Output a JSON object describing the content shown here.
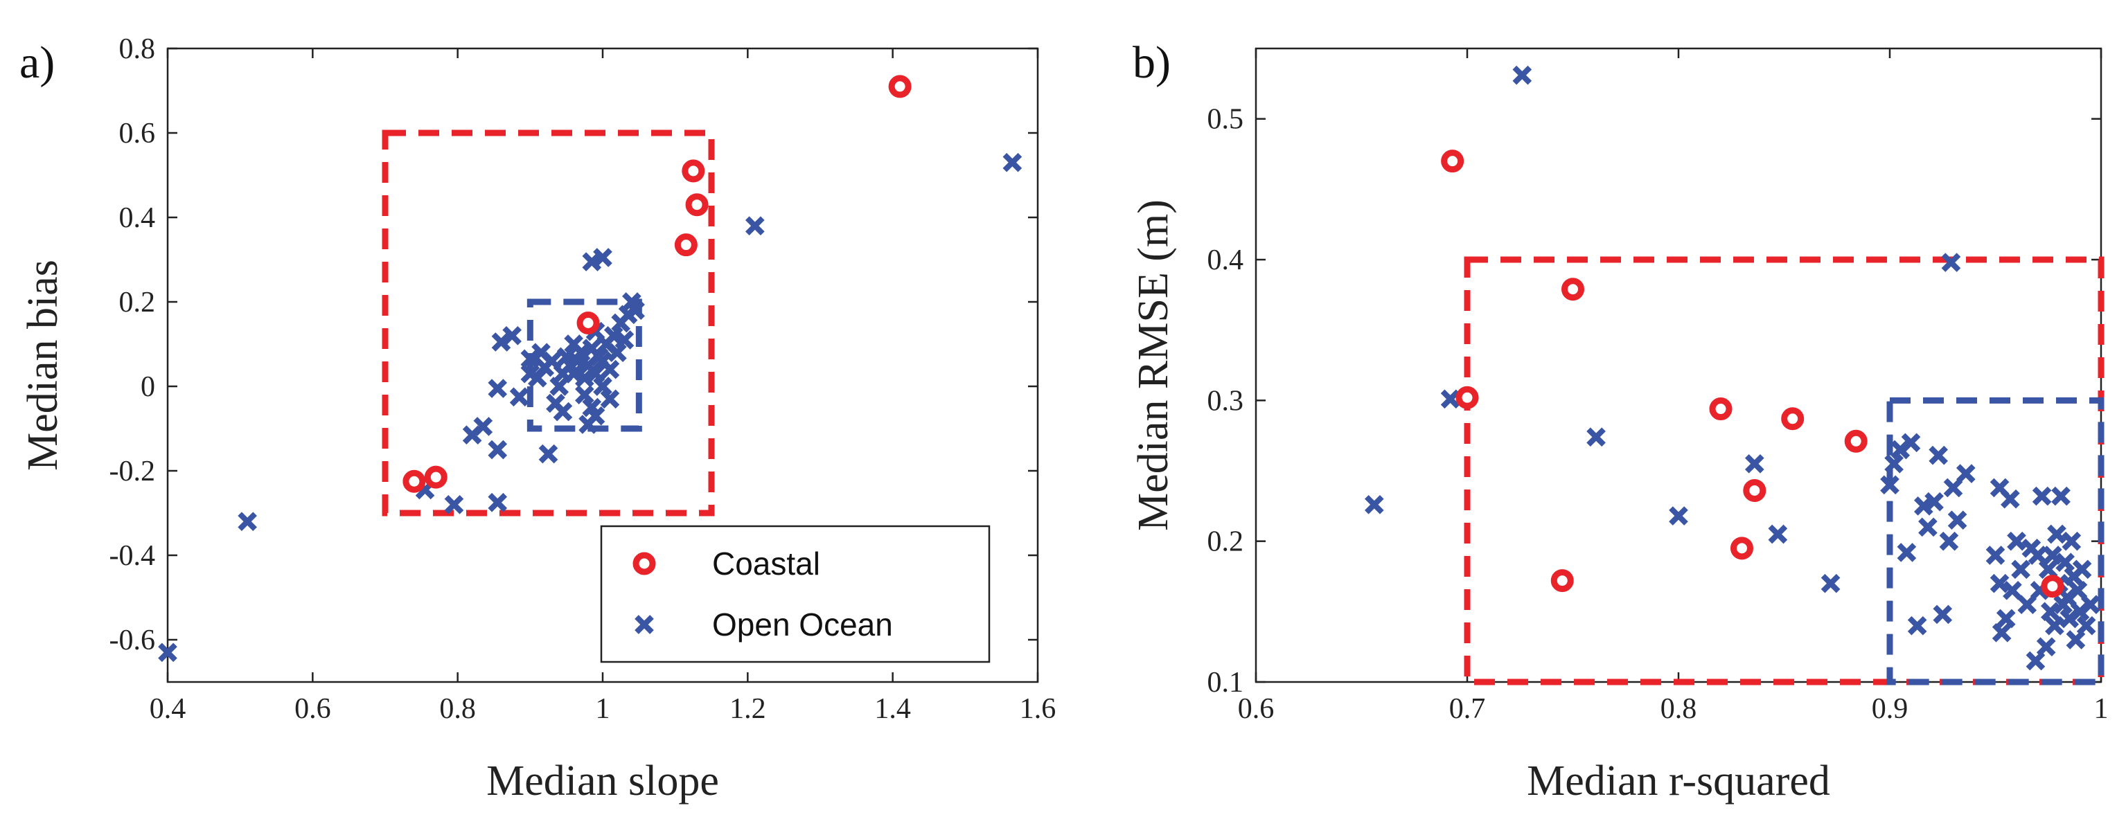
{
  "colors": {
    "coastal": "#e8232a",
    "ocean": "#3a55a4",
    "axis": "#222222"
  },
  "legend": {
    "coastal": "Coastal",
    "ocean": "Open Ocean"
  },
  "chart_data": [
    {
      "type": "scatter",
      "panel_label": "a)",
      "xlabel": "Median slope",
      "ylabel": "Median bias",
      "xlim": [
        0.4,
        1.6
      ],
      "ylim": [
        -0.7,
        0.8
      ],
      "xticks": [
        0.4,
        0.6,
        0.8,
        1,
        1.2,
        1.4,
        1.6
      ],
      "xtick_labels": [
        "0.4",
        "0.6",
        "0.8",
        "1",
        "1.2",
        "1.4",
        "1.6"
      ],
      "yticks": [
        -0.6,
        -0.4,
        -0.2,
        0,
        0.2,
        0.4,
        0.6,
        0.8
      ],
      "ytick_labels": [
        "-0.6",
        "-0.4",
        "-0.2",
        "0",
        "0.2",
        "0.4",
        "0.6",
        "0.8"
      ],
      "boxes": [
        {
          "name": "coastal-threshold-box",
          "color_key": "coastal",
          "x": [
            0.7,
            1.15
          ],
          "y": [
            -0.3,
            0.6
          ]
        },
        {
          "name": "ocean-threshold-box",
          "color_key": "ocean",
          "x": [
            0.9,
            1.05
          ],
          "y": [
            -0.1,
            0.2
          ]
        }
      ],
      "series": [
        {
          "name": "Coastal",
          "color_key": "coastal",
          "marker": "o",
          "points": [
            [
              0.74,
              -0.225
            ],
            [
              0.77,
              -0.215
            ],
            [
              0.98,
              0.15
            ],
            [
              1.41,
              0.71
            ],
            [
              1.125,
              0.51
            ],
            [
              1.13,
              0.43
            ],
            [
              1.115,
              0.335
            ]
          ]
        },
        {
          "name": "Open Ocean",
          "color_key": "ocean",
          "marker": "x",
          "points": [
            [
              0.4,
              -0.63
            ],
            [
              0.51,
              -0.32
            ],
            [
              0.755,
              -0.245
            ],
            [
              0.795,
              -0.28
            ],
            [
              0.82,
              -0.115
            ],
            [
              0.835,
              -0.095
            ],
            [
              0.855,
              -0.15
            ],
            [
              0.855,
              -0.275
            ],
            [
              0.855,
              -0.005
            ],
            [
              0.86,
              0.105
            ],
            [
              0.875,
              0.12
            ],
            [
              0.885,
              -0.025
            ],
            [
              0.9,
              0.03
            ],
            [
              0.9,
              0.065
            ],
            [
              0.91,
              0.02
            ],
            [
              0.915,
              0.08
            ],
            [
              0.92,
              0.045
            ],
            [
              0.925,
              -0.16
            ],
            [
              0.93,
              0.06
            ],
            [
              0.935,
              -0.04
            ],
            [
              0.94,
              0.0
            ],
            [
              0.945,
              0.03
            ],
            [
              0.945,
              -0.06
            ],
            [
              0.95,
              0.07
            ],
            [
              0.955,
              0.05
            ],
            [
              0.96,
              0.03
            ],
            [
              0.96,
              0.1
            ],
            [
              0.965,
              0.06
            ],
            [
              0.97,
              0.08
            ],
            [
              0.975,
              0.02
            ],
            [
              0.975,
              -0.02
            ],
            [
              0.98,
              0.05
            ],
            [
              0.985,
              0.09
            ],
            [
              0.985,
              -0.05
            ],
            [
              0.99,
              0.03
            ],
            [
              0.99,
              0.13
            ],
            [
              0.995,
              0.07
            ],
            [
              1.0,
              0.0
            ],
            [
              1.0,
              0.06
            ],
            [
              1.005,
              0.1
            ],
            [
              1.01,
              0.04
            ],
            [
              1.01,
              -0.03
            ],
            [
              1.015,
              0.12
            ],
            [
              1.02,
              0.08
            ],
            [
              1.025,
              0.15
            ],
            [
              1.03,
              0.11
            ],
            [
              1.035,
              0.17
            ],
            [
              1.04,
              0.2
            ],
            [
              1.045,
              0.18
            ],
            [
              0.985,
              0.295
            ],
            [
              1.0,
              0.305
            ],
            [
              0.98,
              -0.09
            ],
            [
              0.99,
              -0.07
            ],
            [
              1.21,
              0.38
            ],
            [
              1.565,
              0.53
            ]
          ]
        }
      ]
    },
    {
      "type": "scatter",
      "panel_label": "b)",
      "xlabel": "Median r-squared",
      "ylabel": "Median RMSE (m)",
      "xlim": [
        0.6,
        1.0
      ],
      "ylim": [
        0.1,
        0.55
      ],
      "xticks": [
        0.6,
        0.7,
        0.8,
        0.9,
        1.0
      ],
      "xtick_labels": [
        "0.6",
        "0.7",
        "0.8",
        "0.9",
        "1"
      ],
      "yticks": [
        0.1,
        0.2,
        0.3,
        0.4,
        0.5
      ],
      "ytick_labels": [
        "0.1",
        "0.2",
        "0.3",
        "0.4",
        "0.5"
      ],
      "boxes": [
        {
          "name": "coastal-threshold-box",
          "color_key": "coastal",
          "x": [
            0.7,
            1.0
          ],
          "y": [
            0.1,
            0.4
          ]
        },
        {
          "name": "ocean-threshold-box",
          "color_key": "ocean",
          "x": [
            0.9,
            1.0
          ],
          "y": [
            0.1,
            0.3
          ]
        }
      ],
      "series": [
        {
          "name": "Coastal",
          "color_key": "coastal",
          "marker": "o",
          "points": [
            [
              0.693,
              0.47
            ],
            [
              0.7,
              0.302
            ],
            [
              0.75,
              0.379
            ],
            [
              0.745,
              0.172
            ],
            [
              0.82,
              0.294
            ],
            [
              0.836,
              0.236
            ],
            [
              0.83,
              0.195
            ],
            [
              0.854,
              0.287
            ],
            [
              0.884,
              0.271
            ],
            [
              0.977,
              0.168
            ]
          ]
        },
        {
          "name": "Open Ocean",
          "color_key": "ocean",
          "marker": "x",
          "points": [
            [
              0.726,
              0.531
            ],
            [
              0.692,
              0.301
            ],
            [
              0.656,
              0.226
            ],
            [
              0.761,
              0.274
            ],
            [
              0.8,
              0.218
            ],
            [
              0.836,
              0.255
            ],
            [
              0.847,
              0.205
            ],
            [
              0.872,
              0.17
            ],
            [
              0.929,
              0.398
            ],
            [
              0.9,
              0.24
            ],
            [
              0.902,
              0.255
            ],
            [
              0.905,
              0.265
            ],
            [
              0.908,
              0.192
            ],
            [
              0.91,
              0.27
            ],
            [
              0.913,
              0.14
            ],
            [
              0.916,
              0.225
            ],
            [
              0.918,
              0.21
            ],
            [
              0.921,
              0.228
            ],
            [
              0.923,
              0.261
            ],
            [
              0.925,
              0.148
            ],
            [
              0.928,
              0.2
            ],
            [
              0.93,
              0.238
            ],
            [
              0.932,
              0.215
            ],
            [
              0.936,
              0.248
            ],
            [
              0.95,
              0.19
            ],
            [
              0.952,
              0.17
            ],
            [
              0.953,
              0.135
            ],
            [
              0.955,
              0.145
            ],
            [
              0.957,
              0.23
            ],
            [
              0.958,
              0.165
            ],
            [
              0.96,
              0.2
            ],
            [
              0.962,
              0.18
            ],
            [
              0.965,
              0.155
            ],
            [
              0.967,
              0.195
            ],
            [
              0.969,
              0.115
            ],
            [
              0.971,
              0.165
            ],
            [
              0.972,
              0.232
            ],
            [
              0.974,
              0.125
            ],
            [
              0.975,
              0.18
            ],
            [
              0.976,
              0.15
            ],
            [
              0.977,
              0.19
            ],
            [
              0.978,
              0.14
            ],
            [
              0.979,
              0.205
            ],
            [
              0.98,
              0.17
            ],
            [
              0.981,
              0.232
            ],
            [
              0.982,
              0.155
            ],
            [
              0.983,
              0.185
            ],
            [
              0.984,
              0.16
            ],
            [
              0.985,
              0.145
            ],
            [
              0.986,
              0.2
            ],
            [
              0.987,
              0.175
            ],
            [
              0.988,
              0.13
            ],
            [
              0.989,
              0.165
            ],
            [
              0.99,
              0.15
            ],
            [
              0.991,
              0.18
            ],
            [
              0.993,
              0.14
            ],
            [
              0.995,
              0.155
            ],
            [
              0.952,
              0.238
            ],
            [
              0.97,
              0.19
            ]
          ]
        }
      ]
    }
  ]
}
